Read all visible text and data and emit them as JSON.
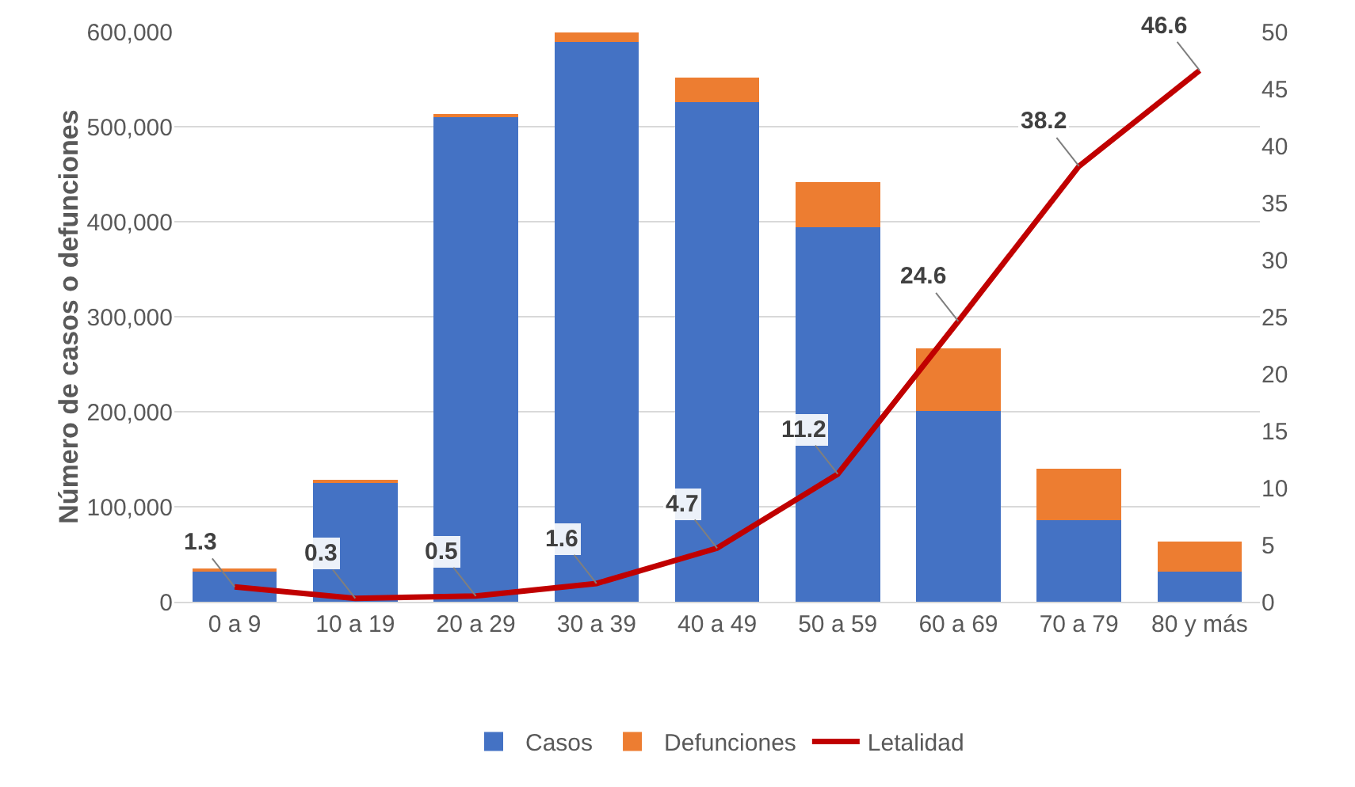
{
  "chart_data": {
    "type": "bar",
    "stacked": true,
    "categories": [
      "0 a 9",
      "10 a 19",
      "20 a 29",
      "30 a 39",
      "40 a 49",
      "50 a 59",
      "60 a 69",
      "70 a 79",
      "80 y más"
    ],
    "series": [
      {
        "name": "Casos",
        "color": "#4472c4",
        "values": [
          33000,
          126000,
          510000,
          589000,
          526000,
          394000,
          201000,
          86000,
          32000
        ]
      },
      {
        "name": "Defunciones",
        "color": "#ed7d31",
        "values": [
          1000,
          1000,
          3000,
          10000,
          26000,
          48000,
          66000,
          54000,
          31000
        ]
      },
      {
        "name": "Letalidad",
        "type": "line",
        "axis": "y2",
        "color": "#c00000",
        "values": [
          1.3,
          0.3,
          0.5,
          1.6,
          4.7,
          11.2,
          24.6,
          38.2,
          46.6
        ],
        "value_labels": [
          "1.3",
          "0.3",
          "0.5",
          "1.6",
          "4.7",
          "11.2",
          "24.6",
          "38.2",
          "46.6"
        ]
      }
    ],
    "ylabel": "Número de casos o defunciones",
    "ylim": [
      0,
      600000
    ],
    "yticks": [
      0,
      {
        "value": 100000,
        "label": "100,000"
      },
      {
        "value": 200000,
        "label": "200,000"
      },
      {
        "value": 300000,
        "label": "300,000"
      },
      {
        "value": 400000,
        "label": "400,000"
      },
      {
        "value": 500000,
        "label": "500,000"
      },
      {
        "value": 600000,
        "label": "600,000"
      }
    ],
    "y2lim": [
      0,
      50
    ],
    "y2ticks": [
      0,
      5,
      10,
      15,
      20,
      25,
      30,
      35,
      40,
      45,
      50
    ],
    "grid": "y",
    "legend": "bottom",
    "marker": "none",
    "line_style": "solid"
  }
}
